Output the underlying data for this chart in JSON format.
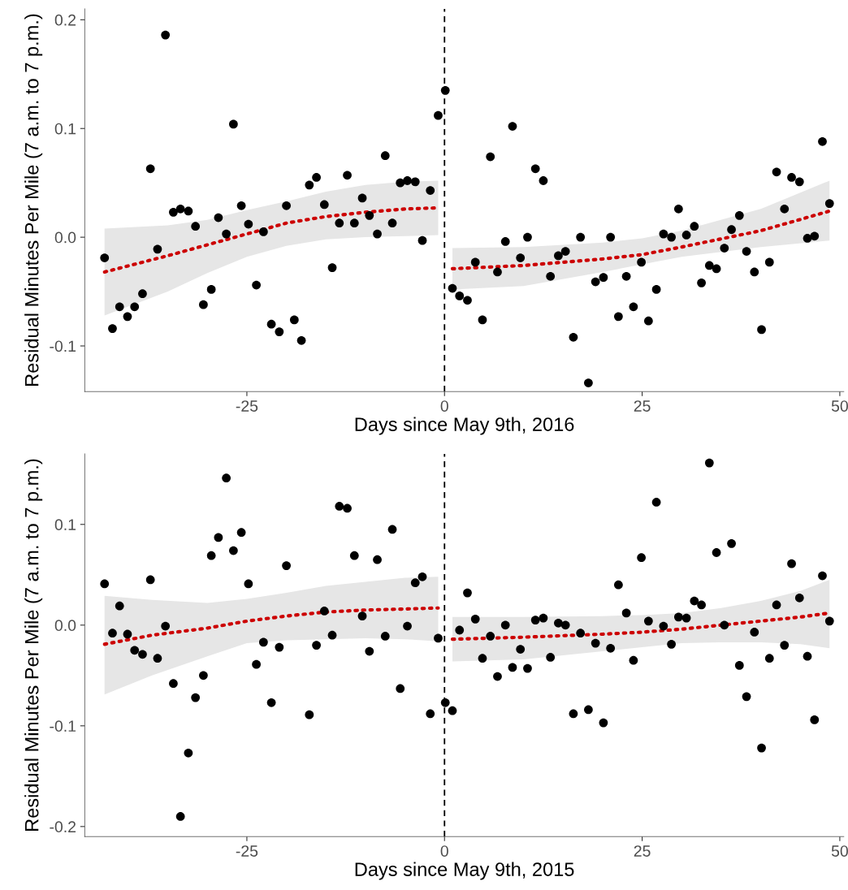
{
  "chart_data": [
    {
      "type": "scatter",
      "xlabel": "Days since May 9th, 2016",
      "ylabel": "Residual Minutes Per Mile (7 a.m. to 7 p.m.)",
      "xlim": [
        -45.5,
        50.5
      ],
      "ylim": [
        -0.142,
        0.21
      ],
      "xticks": [
        {
          "value": -25,
          "label": "-25"
        },
        0,
        25,
        50
      ],
      "yticks": [
        {
          "value": -0.1,
          "label": "-0.1"
        },
        {
          "value": 0,
          "label": "0.0"
        },
        {
          "value": 0.1,
          "label": "0.1"
        },
        {
          "value": 0.2,
          "label": "0.2"
        }
      ],
      "ref_lines": [
        {
          "axis": "x",
          "value": 0,
          "color": "#000000",
          "line_style": "dashed"
        }
      ],
      "series": [
        {
          "type": "scatter",
          "color": "#000000",
          "marker": "circle",
          "x": [
            -43.0,
            -42.0,
            -41.1,
            -40.1,
            -39.2,
            -38.2,
            -37.2,
            -36.3,
            -35.3,
            -34.3,
            -33.4,
            -32.4,
            -31.5,
            -30.5,
            -29.5,
            -28.6,
            -27.6,
            -26.7,
            -25.7,
            -24.8,
            -23.8,
            -22.9,
            -21.9,
            -20.9,
            -20.0,
            -19.0,
            -18.1,
            -17.1,
            -16.2,
            -15.2,
            -14.2,
            -13.3,
            -12.3,
            -11.4,
            -10.4,
            -9.5,
            -8.5,
            -7.5,
            -6.6,
            -5.6,
            -4.7,
            -3.7,
            -2.8,
            -1.8,
            -0.8,
            0.1,
            1.0,
            1.9,
            2.9,
            3.9,
            4.8,
            5.8,
            6.7,
            7.7,
            8.6,
            9.6,
            10.5,
            11.5,
            12.5,
            13.4,
            14.4,
            15.3,
            16.3,
            17.2,
            18.2,
            19.1,
            20.1,
            21.0,
            22.0,
            23.0,
            23.9,
            24.9,
            25.8,
            26.8,
            27.7,
            28.7,
            29.6,
            30.6,
            31.6,
            32.5,
            33.5,
            34.4,
            35.4,
            36.3,
            37.3,
            38.2,
            39.2,
            40.1,
            41.1,
            42.0,
            43.0,
            43.9,
            44.9,
            45.9,
            46.8,
            47.8,
            48.7
          ],
          "values": [
            -0.019,
            -0.084,
            -0.064,
            -0.073,
            -0.064,
            -0.052,
            0.063,
            -0.011,
            0.186,
            0.023,
            0.026,
            0.024,
            0.01,
            -0.062,
            -0.048,
            0.018,
            0.003,
            0.104,
            0.029,
            0.012,
            -0.044,
            0.005,
            -0.08,
            -0.087,
            0.029,
            -0.076,
            -0.095,
            0.048,
            0.055,
            0.03,
            -0.028,
            0.013,
            0.057,
            0.013,
            0.036,
            0.02,
            0.003,
            0.075,
            0.013,
            0.05,
            0.052,
            0.051,
            -0.003,
            0.043,
            0.112,
            0.135,
            -0.047,
            -0.054,
            -0.058,
            -0.023,
            -0.076,
            0.074,
            -0.032,
            -0.004,
            0.102,
            -0.019,
            0.0,
            0.063,
            0.052,
            -0.036,
            -0.017,
            -0.013,
            -0.092,
            0.0,
            -0.134,
            -0.041,
            -0.037,
            0.0,
            -0.073,
            -0.036,
            -0.064,
            -0.023,
            -0.077,
            -0.048,
            0.003,
            0.0,
            0.026,
            0.002,
            0.01,
            -0.042,
            -0.026,
            -0.029,
            -0.01,
            0.007,
            0.02,
            -0.013,
            -0.032,
            -0.085,
            -0.023,
            0.06,
            0.026,
            0.055,
            0.051,
            -0.001,
            0.001,
            0.088,
            0.031
          ]
        },
        {
          "type": "line",
          "color": "#cc0000",
          "line_style": "dotted",
          "marker": "none",
          "x": [
            -43,
            -35,
            -30,
            -25,
            -20,
            -15,
            -10,
            -5,
            -0.8
          ],
          "values": [
            -0.032,
            -0.017,
            -0.007,
            0.003,
            0.013,
            0.019,
            0.023,
            0.026,
            0.027
          ],
          "lower": [
            -0.072,
            -0.05,
            -0.033,
            -0.018,
            -0.008,
            -0.002,
            0.0,
            0.001,
            0.002
          ],
          "upper": [
            0.008,
            0.011,
            0.016,
            0.025,
            0.033,
            0.042,
            0.048,
            0.051,
            0.052
          ]
        },
        {
          "type": "line",
          "color": "#cc0000",
          "line_style": "dotted",
          "marker": "none",
          "x": [
            1,
            10,
            20,
            25,
            30,
            40,
            48.7
          ],
          "values": [
            -0.029,
            -0.026,
            -0.02,
            -0.016,
            -0.009,
            0.006,
            0.024
          ],
          "lower": [
            -0.048,
            -0.045,
            -0.032,
            -0.025,
            -0.018,
            -0.009,
            -0.003
          ],
          "upper": [
            -0.01,
            -0.009,
            -0.005,
            -0.001,
            0.006,
            0.026,
            0.052
          ]
        }
      ]
    },
    {
      "type": "scatter",
      "xlabel": "Days since May 9th, 2015",
      "ylabel": "Residual Minutes Per Mile (7 a.m. to 7 p.m.)",
      "xlim": [
        -45.5,
        50.5
      ],
      "ylim": [
        -0.21,
        0.17
      ],
      "xticks": [
        {
          "value": -25,
          "label": "-25"
        },
        0,
        25,
        50
      ],
      "yticks": [
        {
          "value": -0.2,
          "label": "-0.2"
        },
        {
          "value": -0.1,
          "label": "-0.1"
        },
        {
          "value": 0,
          "label": "0.0"
        },
        {
          "value": 0.1,
          "label": "0.1"
        }
      ],
      "ref_lines": [
        {
          "axis": "x",
          "value": 0,
          "color": "#000000",
          "line_style": "dashed"
        }
      ],
      "series": [
        {
          "type": "scatter",
          "color": "#000000",
          "marker": "circle",
          "x": [
            -43.0,
            -42.0,
            -41.1,
            -40.1,
            -39.2,
            -38.2,
            -37.2,
            -36.3,
            -35.3,
            -34.3,
            -33.4,
            -32.4,
            -31.5,
            -30.5,
            -29.5,
            -28.6,
            -27.6,
            -26.7,
            -25.7,
            -24.8,
            -23.8,
            -22.9,
            -21.9,
            -20.9,
            -20.0,
            -17.1,
            -16.2,
            -15.2,
            -14.2,
            -13.3,
            -12.3,
            -11.4,
            -10.4,
            -9.5,
            -8.5,
            -7.5,
            -6.6,
            -5.6,
            -4.7,
            -3.7,
            -2.8,
            -1.8,
            -0.8,
            0.1,
            1.0,
            1.9,
            2.9,
            3.9,
            4.8,
            5.8,
            6.7,
            7.7,
            8.6,
            9.6,
            10.5,
            11.5,
            12.5,
            13.4,
            14.4,
            15.3,
            16.3,
            17.2,
            18.2,
            19.1,
            20.1,
            21.0,
            22.0,
            23.0,
            23.9,
            24.9,
            25.8,
            26.8,
            27.7,
            28.7,
            29.6,
            30.6,
            31.6,
            32.5,
            33.5,
            34.4,
            35.4,
            36.3,
            37.3,
            38.2,
            39.2,
            40.1,
            41.1,
            42.0,
            43.0,
            43.9,
            44.9,
            45.9,
            46.8,
            47.8,
            48.7
          ],
          "values": [
            0.041,
            -0.008,
            0.019,
            -0.009,
            -0.025,
            -0.029,
            0.045,
            -0.033,
            -0.001,
            -0.058,
            -0.19,
            -0.127,
            -0.072,
            -0.05,
            0.069,
            0.087,
            0.146,
            0.074,
            0.092,
            0.041,
            -0.039,
            -0.017,
            -0.077,
            -0.022,
            0.059,
            -0.089,
            -0.02,
            0.014,
            -0.01,
            0.118,
            0.116,
            0.069,
            0.009,
            -0.026,
            0.065,
            -0.011,
            0.095,
            -0.063,
            -0.001,
            0.042,
            0.048,
            -0.088,
            -0.013,
            -0.077,
            -0.085,
            -0.005,
            0.032,
            0.006,
            -0.033,
            -0.011,
            -0.051,
            0.0,
            -0.042,
            -0.024,
            -0.043,
            0.005,
            0.007,
            -0.032,
            0.002,
            0.0,
            -0.088,
            -0.008,
            -0.084,
            -0.018,
            -0.097,
            -0.023,
            0.04,
            0.012,
            -0.035,
            0.067,
            0.004,
            0.122,
            -0.001,
            -0.019,
            0.008,
            0.007,
            0.024,
            0.02,
            0.161,
            0.072,
            0.0,
            0.081,
            -0.04,
            -0.071,
            -0.007,
            -0.122,
            -0.033,
            0.02,
            -0.02,
            0.061,
            0.027,
            -0.031,
            -0.094,
            0.049,
            0.004
          ]
        },
        {
          "type": "line",
          "color": "#cc0000",
          "line_style": "dotted",
          "marker": "none",
          "x": [
            -43,
            -37,
            -30,
            -25,
            -20,
            -15,
            -10,
            -5,
            -0.8
          ],
          "values": [
            -0.019,
            -0.01,
            -0.003,
            0.004,
            0.009,
            0.013,
            0.015,
            0.016,
            0.017
          ],
          "lower": [
            -0.069,
            -0.05,
            -0.031,
            -0.018,
            -0.015,
            -0.014,
            -0.013,
            -0.014,
            -0.016
          ],
          "upper": [
            0.029,
            0.025,
            0.022,
            0.026,
            0.032,
            0.039,
            0.043,
            0.047,
            0.048
          ]
        },
        {
          "type": "line",
          "color": "#cc0000",
          "line_style": "dotted",
          "marker": "none",
          "x": [
            1,
            10,
            20,
            25,
            30,
            35,
            40,
            45,
            48.7
          ],
          "values": [
            -0.014,
            -0.012,
            -0.009,
            -0.007,
            -0.004,
            0.0,
            0.004,
            0.008,
            0.012
          ],
          "lower": [
            -0.036,
            -0.034,
            -0.026,
            -0.022,
            -0.018,
            -0.017,
            -0.017,
            -0.019,
            -0.023
          ],
          "upper": [
            0.008,
            0.008,
            0.009,
            0.01,
            0.012,
            0.017,
            0.024,
            0.034,
            0.045
          ]
        }
      ]
    }
  ]
}
